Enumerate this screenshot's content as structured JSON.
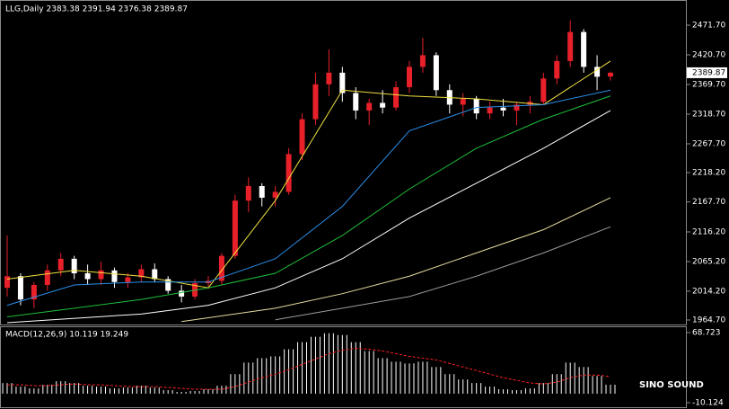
{
  "chart_data": {
    "type": "candlestick",
    "title": "LLG,Daily  2383.38 2391.94 2376.38 2389.87",
    "bull_color": "#e8202a",
    "bear_color": "#ffffff",
    "candles": {
      "open": [
        2020,
        2040,
        2000,
        2025,
        2050,
        2070,
        2045,
        2035,
        2050,
        2030,
        2038,
        2052,
        2035,
        2015,
        2005,
        2028,
        2032,
        2075,
        2170,
        2195,
        2175,
        2185,
        2250,
        2310,
        2370,
        2390,
        2355,
        2325,
        2338,
        2330,
        2365,
        2400,
        2420,
        2360,
        2335,
        2345,
        2320,
        2330,
        2325,
        2335,
        2340,
        2380,
        2410,
        2460,
        2400,
        2383.38
      ],
      "high": [
        2110,
        2045,
        2030,
        2060,
        2080,
        2075,
        2060,
        2065,
        2055,
        2045,
        2060,
        2062,
        2040,
        2025,
        2035,
        2040,
        2080,
        2180,
        2210,
        2200,
        2195,
        2260,
        2320,
        2390,
        2430,
        2400,
        2365,
        2345,
        2360,
        2375,
        2410,
        2450,
        2425,
        2370,
        2355,
        2350,
        2340,
        2345,
        2340,
        2350,
        2390,
        2420,
        2480,
        2465,
        2420,
        2391.94
      ],
      "low": [
        2005,
        1990,
        1985,
        2015,
        2040,
        2035,
        2025,
        2025,
        2020,
        2020,
        2030,
        2030,
        2010,
        1995,
        2000,
        2018,
        2025,
        2070,
        2150,
        2160,
        2160,
        2180,
        2240,
        2300,
        2350,
        2340,
        2310,
        2300,
        2320,
        2325,
        2355,
        2390,
        2350,
        2320,
        2315,
        2310,
        2310,
        2315,
        2300,
        2320,
        2335,
        2370,
        2400,
        2390,
        2360,
        2376.38
      ],
      "close": [
        2040,
        2000,
        2025,
        2050,
        2070,
        2045,
        2035,
        2050,
        2030,
        2038,
        2052,
        2035,
        2015,
        2005,
        2028,
        2032,
        2075,
        2170,
        2195,
        2175,
        2185,
        2250,
        2310,
        2370,
        2390,
        2355,
        2325,
        2338,
        2330,
        2365,
        2400,
        2420,
        2360,
        2335,
        2345,
        2320,
        2330,
        2325,
        2335,
        2340,
        2380,
        2410,
        2460,
        2400,
        2383,
        2389.87
      ]
    },
    "ylim": [
      1955.4,
      2515
    ],
    "yticks": [
      {
        "value": 2471.7,
        "label": "2471.70"
      },
      {
        "value": 2420.7,
        "label": "2420.70"
      },
      {
        "value": 2369.7,
        "label": "2369.70"
      },
      {
        "value": 2318.7,
        "label": "2318.70"
      },
      {
        "value": 2267.7,
        "label": "2267.70"
      },
      {
        "value": 2218.2,
        "label": "2218.20"
      },
      {
        "value": 2167.7,
        "label": "2167.70"
      },
      {
        "value": 2116.2,
        "label": "2116.20"
      },
      {
        "value": 2065.2,
        "label": "2065.20"
      },
      {
        "value": 2014.2,
        "label": "2014.20"
      },
      {
        "value": 1964.7,
        "label": "1964.70"
      }
    ],
    "series": [
      {
        "color": "#f0e040",
        "x": [
          0,
          5,
          10,
          15,
          20,
          25,
          30,
          35,
          40,
          45
        ],
        "values": [
          2035,
          2050,
          2040,
          2020,
          2170,
          2360,
          2350,
          2345,
          2335,
          2410
        ]
      },
      {
        "color": "#2a8ee8",
        "x": [
          0,
          5,
          10,
          15,
          20,
          25,
          30,
          35,
          40,
          45
        ],
        "values": [
          1990,
          2025,
          2030,
          2030,
          2070,
          2160,
          2290,
          2330,
          2335,
          2360
        ]
      },
      {
        "color": "#1fbf3a",
        "x": [
          0,
          5,
          10,
          15,
          20,
          25,
          30,
          35,
          40,
          45
        ],
        "values": [
          1970,
          1985,
          2000,
          2020,
          2045,
          2110,
          2190,
          2260,
          2310,
          2350
        ]
      },
      {
        "color": "#ffffff",
        "x": [
          0,
          10,
          15,
          20,
          25,
          30,
          35,
          40,
          45
        ],
        "values": [
          1960,
          1975,
          1990,
          2020,
          2070,
          2140,
          2200,
          2260,
          2325
        ]
      },
      {
        "color": "#e8dca0",
        "x": [
          13,
          20,
          25,
          30,
          35,
          40,
          45
        ],
        "values": [
          1962,
          1985,
          2010,
          2040,
          2080,
          2120,
          2175
        ]
      },
      {
        "color": "#9a9a9a",
        "x": [
          20,
          25,
          30,
          35,
          40,
          45
        ],
        "values": [
          1965,
          1985,
          2005,
          2040,
          2080,
          2125
        ]
      }
    ],
    "macd": {
      "label": "MACD(12,26,9) 10.119 19.249",
      "ylim": [
        -10.124,
        68.723
      ],
      "yticks": [
        68.723,
        -10.124
      ],
      "hist_color": "#ffffff",
      "signal_color": "#ff2020",
      "histogram": [
        12,
        8,
        6,
        10,
        14,
        12,
        9,
        8,
        6,
        7,
        9,
        7,
        4,
        2,
        3,
        5,
        9,
        22,
        35,
        40,
        42,
        50,
        58,
        64,
        68,
        66,
        58,
        48,
        40,
        36,
        34,
        36,
        30,
        22,
        16,
        12,
        8,
        5,
        4,
        6,
        12,
        22,
        35,
        30,
        20,
        10.119
      ],
      "signal": [
        10,
        10,
        9,
        9,
        10,
        11,
        10,
        10,
        9,
        8,
        8,
        8,
        7,
        6,
        5,
        5,
        5,
        8,
        13,
        18,
        22,
        27,
        33,
        39,
        45,
        49,
        51,
        50,
        48,
        45,
        42,
        40,
        38,
        34,
        30,
        26,
        22,
        18,
        15,
        12,
        11,
        13,
        18,
        21,
        21,
        19.249
      ]
    },
    "watermark": "SINO SOUND"
  }
}
